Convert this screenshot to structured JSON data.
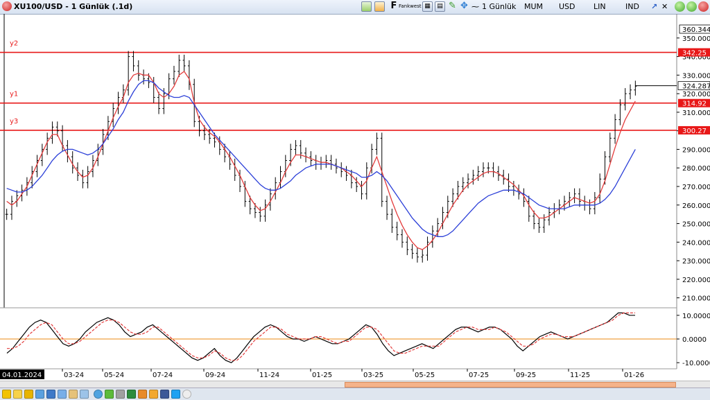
{
  "window": {
    "title": "XU100/USD - 1 Günlük (.1d)"
  },
  "toolbar": {
    "fankwest_label": "Fankwest",
    "period_label": "1 Günlük",
    "mum_label": "MUM",
    "usd_label": "USD",
    "lin_label": "LIN",
    "ind_label": "IND"
  },
  "chart_data": [
    {
      "type": "line",
      "title": "XU100/USD",
      "price_axis_ticks": [
        "350.0000",
        "340.0000",
        "330.0000",
        "320.0000",
        "310.0000",
        "300.0000",
        "290.0000",
        "280.0000",
        "270.0000",
        "260.0000",
        "250.0000",
        "240.0000",
        "230.0000",
        "220.0000",
        "210.0000"
      ],
      "price_axis_top_label": "360.3443",
      "ylim": [
        205,
        363
      ],
      "current_price": "324.287",
      "horizontal_levels": [
        {
          "name": "y2",
          "value": 342.25,
          "label": "342.25",
          "color": "#e81818"
        },
        {
          "name": "y1",
          "value": 314.92,
          "label": "314.92",
          "color": "#e81818"
        },
        {
          "name": "y3",
          "value": 300.27,
          "label": "300.27",
          "color": "#e81818"
        }
      ],
      "x_labels": [
        "04.01.2024",
        "03-24",
        "05-24",
        "07-24",
        "09-24",
        "11-24",
        "01-25",
        "03-25",
        "05-25",
        "07-25",
        "09-25",
        "11-25",
        "01-26"
      ],
      "series": [
        {
          "name": "close",
          "color": "#000000",
          "values": [
            255,
            262,
            265,
            268,
            272,
            278,
            284,
            290,
            296,
            302,
            300,
            292,
            286,
            280,
            276,
            272,
            278,
            284,
            290,
            298,
            305,
            312,
            318,
            322,
            340,
            335,
            330,
            328,
            326,
            318,
            312,
            320,
            328,
            332,
            338,
            335,
            325,
            305,
            300,
            298,
            296,
            294,
            290,
            286,
            282,
            276,
            270,
            262,
            258,
            256,
            254,
            260,
            266,
            272,
            278,
            284,
            290,
            292,
            288,
            286,
            284,
            282,
            283,
            284,
            282,
            280,
            278,
            276,
            272,
            270,
            266,
            280,
            290,
            296,
            262,
            255,
            248,
            244,
            240,
            236,
            234,
            232,
            233,
            240,
            246,
            250,
            256,
            262,
            266,
            270,
            272,
            274,
            276,
            278,
            280,
            280,
            278,
            276,
            274,
            270,
            268,
            266,
            262,
            254,
            250,
            248,
            252,
            256,
            258,
            260,
            262,
            264,
            266,
            262,
            260,
            258,
            264,
            274,
            286,
            296,
            306,
            314,
            320,
            322,
            324
          ]
        },
        {
          "name": "ma-fast",
          "color": "#e33b3b",
          "values": [
            262,
            260,
            262,
            266,
            270,
            276,
            282,
            288,
            294,
            298,
            298,
            292,
            287,
            282,
            278,
            275,
            276,
            280,
            286,
            293,
            300,
            307,
            313,
            318,
            326,
            330,
            331,
            330,
            330,
            326,
            320,
            318,
            320,
            324,
            330,
            332,
            328,
            315,
            306,
            302,
            299,
            297,
            294,
            290,
            286,
            281,
            276,
            270,
            264,
            260,
            257,
            258,
            262,
            267,
            272,
            278,
            283,
            287,
            287,
            286,
            285,
            284,
            283,
            283,
            282,
            281,
            280,
            278,
            276,
            273,
            270,
            273,
            280,
            286,
            278,
            270,
            262,
            255,
            249,
            244,
            240,
            237,
            236,
            238,
            241,
            245,
            250,
            255,
            260,
            264,
            268,
            271,
            273,
            275,
            277,
            278,
            278,
            277,
            275,
            273,
            271,
            268,
            265,
            260,
            256,
            253,
            253,
            254,
            256,
            258,
            260,
            262,
            264,
            263,
            262,
            261,
            262,
            266,
            273,
            282,
            291,
            299,
            306,
            311,
            316
          ]
        },
        {
          "name": "ma-slow",
          "color": "#2b3fd8",
          "values": [
            269,
            268,
            267,
            267,
            268,
            270,
            273,
            276,
            280,
            284,
            287,
            289,
            290,
            290,
            289,
            288,
            287,
            288,
            290,
            293,
            297,
            301,
            306,
            310,
            316,
            321,
            325,
            327,
            327,
            326,
            323,
            321,
            319,
            318,
            318,
            319,
            318,
            314,
            310,
            306,
            302,
            298,
            295,
            292,
            289,
            286,
            283,
            280,
            277,
            274,
            271,
            269,
            268,
            268,
            269,
            271,
            273,
            276,
            278,
            280,
            281,
            282,
            282,
            282,
            282,
            281,
            280,
            279,
            278,
            277,
            275,
            275,
            276,
            278,
            276,
            273,
            269,
            265,
            261,
            257,
            253,
            250,
            247,
            245,
            244,
            243,
            243,
            244,
            246,
            249,
            252,
            255,
            258,
            261,
            263,
            265,
            266,
            267,
            268,
            268,
            268,
            267,
            266,
            264,
            262,
            260,
            259,
            258,
            258,
            258,
            258,
            259,
            260,
            260,
            260,
            260,
            260,
            261,
            263,
            266,
            270,
            275,
            280,
            285,
            290
          ]
        }
      ]
    },
    {
      "type": "line",
      "title": "",
      "ylim": [
        -12,
        12
      ],
      "y_ticks": [
        "10.0000",
        "0.0000",
        "-10.0000"
      ],
      "zero_line_color": "#f0a040",
      "series": [
        {
          "name": "oscillator",
          "color": "#000000",
          "values": [
            -6,
            -4,
            -1,
            2,
            5,
            7,
            8,
            7,
            4,
            1,
            -2,
            -3,
            -2,
            0,
            3,
            5,
            7,
            8,
            9,
            8,
            6,
            3,
            1,
            2,
            3,
            5,
            6,
            4,
            2,
            0,
            -2,
            -4,
            -6,
            -8,
            -9,
            -8,
            -6,
            -4,
            -7,
            -9,
            -10,
            -8,
            -5,
            -2,
            1,
            3,
            5,
            6,
            5,
            3,
            1,
            0,
            0,
            -1,
            0,
            1,
            0,
            -1,
            -2,
            -2,
            -1,
            0,
            2,
            4,
            6,
            5,
            2,
            -2,
            -5,
            -7,
            -6,
            -5,
            -4,
            -3,
            -2,
            -3,
            -4,
            -2,
            0,
            2,
            4,
            5,
            5,
            4,
            3,
            4,
            5,
            5,
            4,
            2,
            0,
            -3,
            -5,
            -3,
            -1,
            1,
            2,
            3,
            2,
            1,
            0,
            1,
            2,
            3,
            4,
            5,
            6,
            7,
            9,
            11,
            11,
            10,
            10
          ]
        },
        {
          "name": "signal",
          "color": "#e33b3b",
          "values": [
            -4,
            -4,
            -3,
            -1,
            2,
            4,
            6,
            7,
            6,
            3,
            0,
            -2,
            -2,
            -1,
            1,
            3,
            5,
            7,
            8,
            8,
            7,
            5,
            3,
            2,
            2,
            3,
            5,
            5,
            3,
            1,
            -1,
            -3,
            -5,
            -7,
            -8,
            -8,
            -7,
            -5,
            -6,
            -8,
            -9,
            -9,
            -7,
            -4,
            -1,
            1,
            3,
            5,
            5,
            4,
            2,
            1,
            0,
            0,
            0,
            1,
            1,
            0,
            -1,
            -2,
            -1,
            -1,
            1,
            3,
            5,
            5,
            4,
            1,
            -2,
            -5,
            -6,
            -6,
            -5,
            -4,
            -3,
            -3,
            -3,
            -3,
            -1,
            1,
            3,
            4,
            5,
            5,
            4,
            4,
            4,
            5,
            4,
            3,
            1,
            -1,
            -3,
            -3,
            -2,
            0,
            1,
            2,
            2,
            1,
            1,
            1,
            2,
            3,
            4,
            5,
            6,
            7,
            8,
            10,
            11,
            11,
            11
          ]
        }
      ]
    }
  ],
  "colors": {
    "level_line": "#e81818",
    "fast_ma": "#e33b3b",
    "slow_ma": "#2b3fd8",
    "osc_zero": "#f0a040",
    "date_badge_bg": "#000000"
  }
}
